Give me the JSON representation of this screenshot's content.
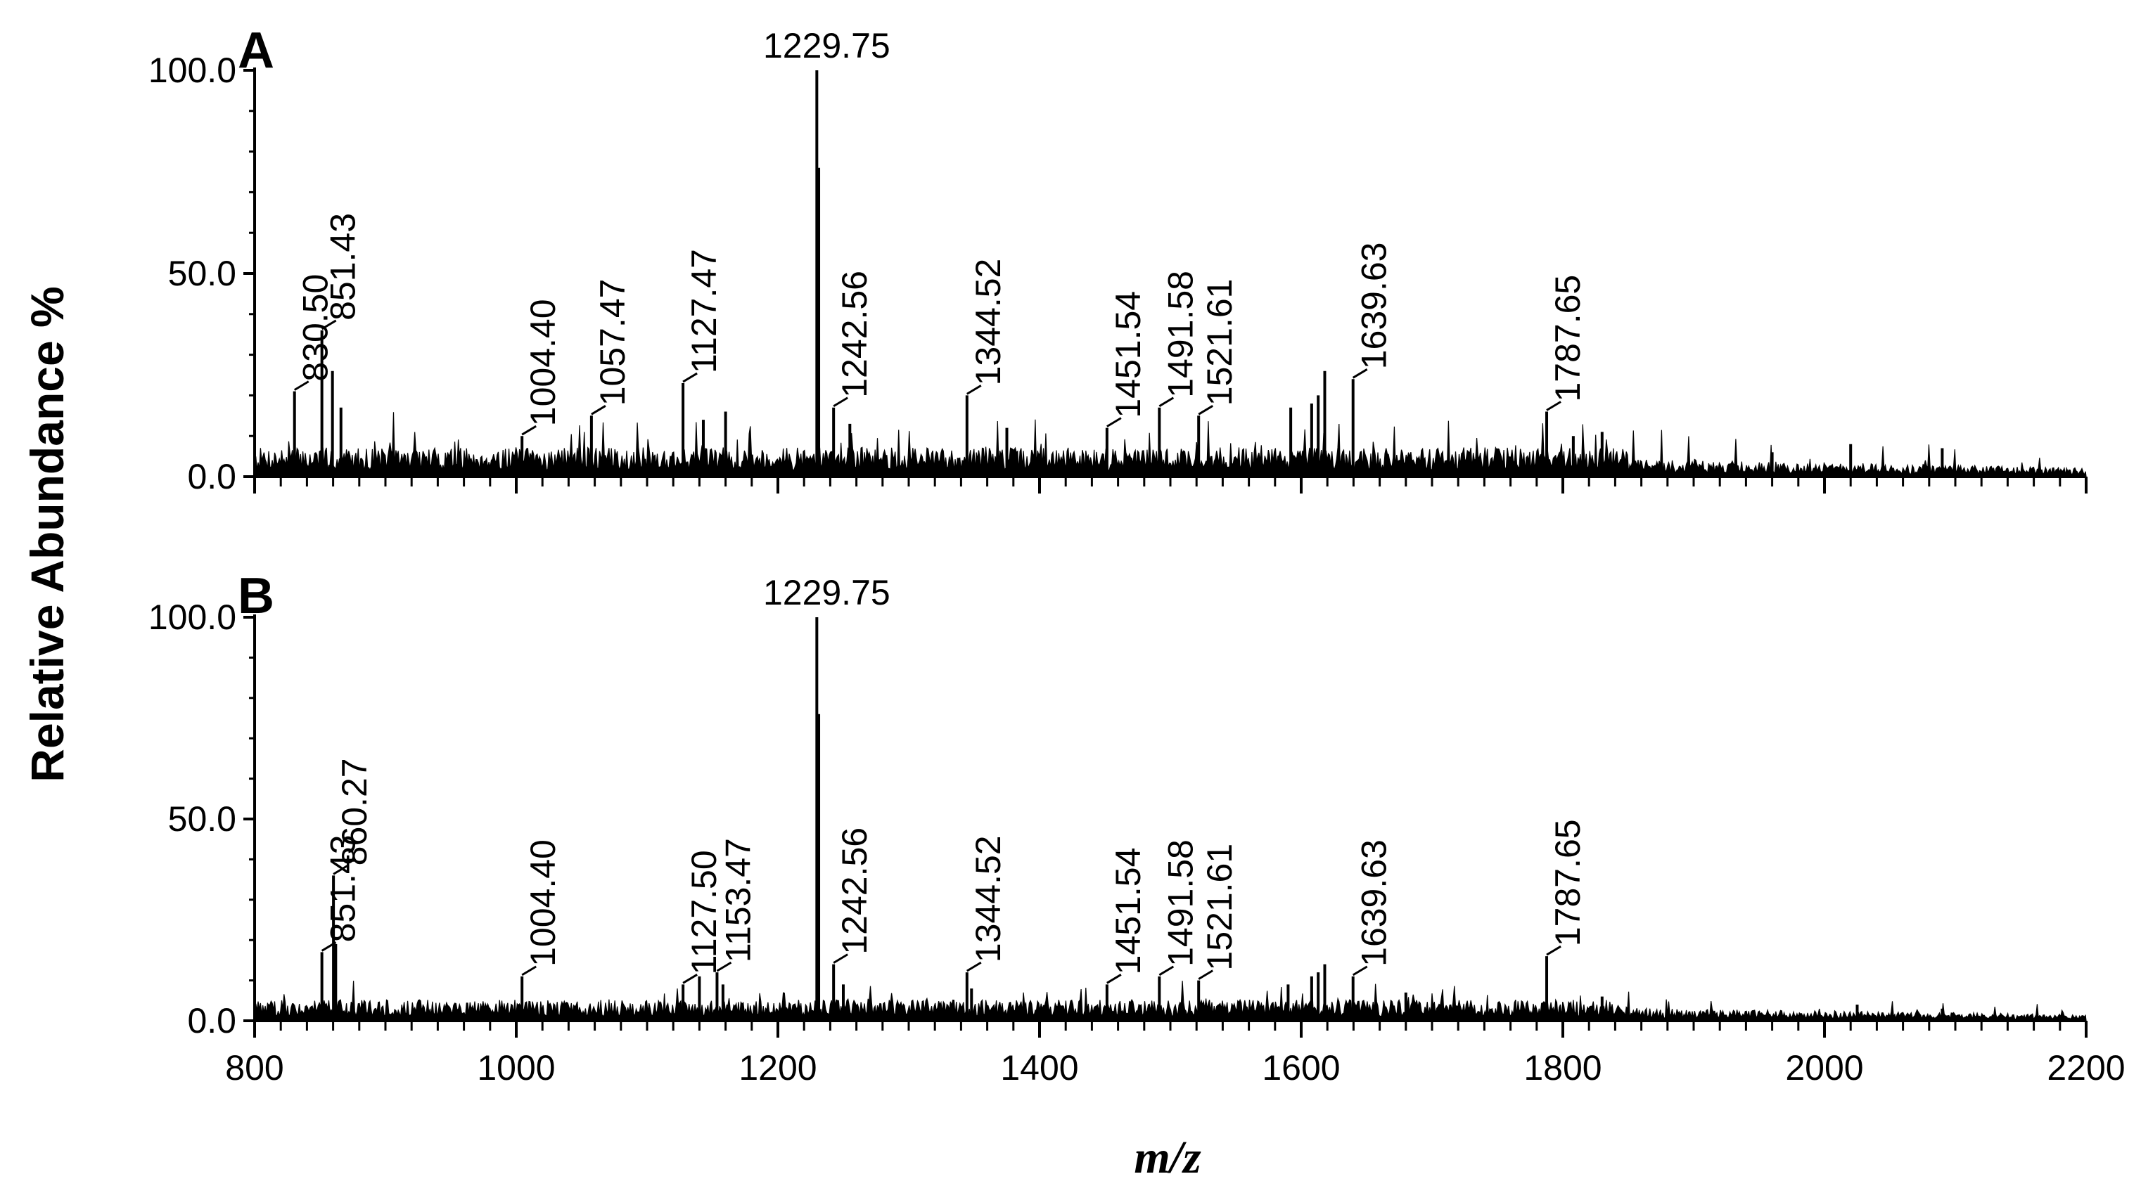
{
  "chart_data": [
    {
      "type": "line",
      "panel": "A",
      "xlim": [
        800,
        2200
      ],
      "ylim": [
        0,
        100
      ],
      "yticks": [
        "0.0",
        "50.0",
        "100.0"
      ],
      "peaks": [
        {
          "x": 1229.75,
          "y": 100,
          "label": "1229.75"
        },
        {
          "x": 830.5,
          "y": 21,
          "label": "830.50"
        },
        {
          "x": 851.43,
          "y": 36,
          "label": "851.43"
        },
        {
          "x": 1004.4,
          "y": 10,
          "label": "1004.40"
        },
        {
          "x": 1057.47,
          "y": 15,
          "label": "1057.47"
        },
        {
          "x": 1127.47,
          "y": 23,
          "label": "1127.47"
        },
        {
          "x": 1242.56,
          "y": 17,
          "label": "1242.56"
        },
        {
          "x": 1344.52,
          "y": 20,
          "label": "1344.52"
        },
        {
          "x": 1451.54,
          "y": 12,
          "label": "1451.54"
        },
        {
          "x": 1491.58,
          "y": 17,
          "label": "1491.58"
        },
        {
          "x": 1521.61,
          "y": 15,
          "label": "1521.61"
        },
        {
          "x": 1639.63,
          "y": 24,
          "label": "1639.63"
        },
        {
          "x": 1787.65,
          "y": 16,
          "label": "1787.65"
        }
      ],
      "minor_peaks": [
        {
          "x": 1231.2,
          "y": 76
        },
        {
          "x": 859.5,
          "y": 26
        },
        {
          "x": 866.0,
          "y": 17
        },
        {
          "x": 1618.0,
          "y": 26
        },
        {
          "x": 1613.0,
          "y": 20
        },
        {
          "x": 1608.0,
          "y": 18
        },
        {
          "x": 1592.0,
          "y": 17
        },
        {
          "x": 1143.0,
          "y": 14
        },
        {
          "x": 1160.0,
          "y": 16
        },
        {
          "x": 1255.0,
          "y": 13
        },
        {
          "x": 1830.0,
          "y": 11
        },
        {
          "x": 1808.0,
          "y": 10
        },
        {
          "x": 1375.0,
          "y": 12
        },
        {
          "x": 2020.0,
          "y": 8
        },
        {
          "x": 2090.0,
          "y": 7
        },
        {
          "x": 1960.0,
          "y": 6
        }
      ]
    },
    {
      "type": "line",
      "panel": "B",
      "xlim": [
        800,
        2200
      ],
      "ylim": [
        0,
        100
      ],
      "yticks": [
        "0.0",
        "50.0",
        "100.0"
      ],
      "peaks": [
        {
          "x": 1229.75,
          "y": 100,
          "label": "1229.75"
        },
        {
          "x": 851.43,
          "y": 17,
          "label": "851.43"
        },
        {
          "x": 860.27,
          "y": 36,
          "label": "860.27"
        },
        {
          "x": 1004.4,
          "y": 11,
          "label": "1004.40"
        },
        {
          "x": 1127.5,
          "y": 9,
          "label": "1127.50"
        },
        {
          "x": 1153.47,
          "y": 12,
          "label": "1153.47"
        },
        {
          "x": 1242.56,
          "y": 14,
          "label": "1242.56"
        },
        {
          "x": 1344.52,
          "y": 12,
          "label": "1344.52"
        },
        {
          "x": 1451.54,
          "y": 9,
          "label": "1451.54"
        },
        {
          "x": 1491.58,
          "y": 11,
          "label": "1491.58"
        },
        {
          "x": 1521.61,
          "y": 10,
          "label": "1521.61"
        },
        {
          "x": 1639.63,
          "y": 11,
          "label": "1639.63"
        },
        {
          "x": 1787.65,
          "y": 16,
          "label": "1787.65"
        }
      ],
      "minor_peaks": [
        {
          "x": 1231.2,
          "y": 76
        },
        {
          "x": 862.0,
          "y": 19
        },
        {
          "x": 1618.0,
          "y": 14
        },
        {
          "x": 1613.0,
          "y": 12
        },
        {
          "x": 1608.0,
          "y": 11
        },
        {
          "x": 1590.0,
          "y": 9
        },
        {
          "x": 1140.0,
          "y": 11
        },
        {
          "x": 1158.0,
          "y": 9
        },
        {
          "x": 1250.0,
          "y": 9
        },
        {
          "x": 1348.0,
          "y": 8
        },
        {
          "x": 1680.0,
          "y": 7
        },
        {
          "x": 1830.0,
          "y": 6
        },
        {
          "x": 2025.0,
          "y": 4
        },
        {
          "x": 2090.0,
          "y": 3
        }
      ]
    }
  ],
  "axes": {
    "xticks": [
      "800",
      "1000",
      "1200",
      "1400",
      "1600",
      "1800",
      "2000",
      "2200"
    ],
    "xlabel": "m/z",
    "ylabel": "Relative Abundance %"
  },
  "colors": {
    "trace": "#000000",
    "background": "#ffffff"
  }
}
